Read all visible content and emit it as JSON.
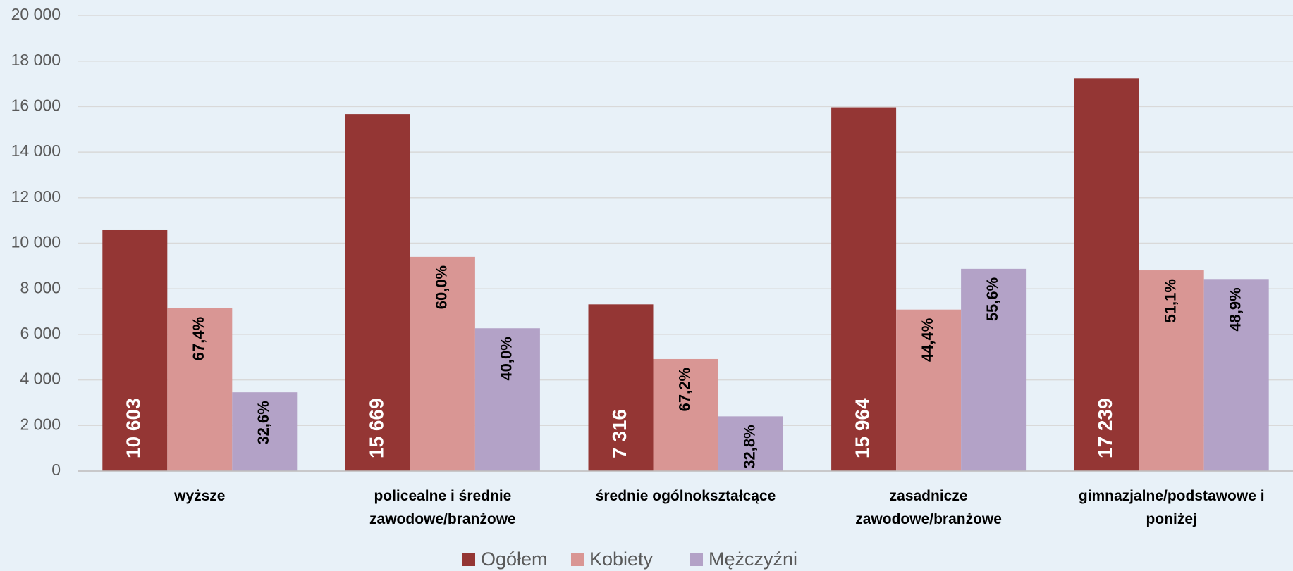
{
  "chart_data": {
    "type": "bar",
    "categories": [
      "wyższe",
      "policealne i średnie zawodowe/branżowe",
      "średnie ogólnokształcące",
      "zasadnicze zawodowe/branżowe",
      "gimnazjalne/podstawowe i poniżej"
    ],
    "series": [
      {
        "name": "Ogółem",
        "color": "#943634",
        "values": [
          10603,
          15669,
          7316,
          15964,
          17239
        ],
        "value_labels": [
          "10 603",
          "15 669",
          "7 316",
          "15 964",
          "17 239"
        ]
      },
      {
        "name": "Kobiety",
        "color": "#d99694",
        "values": [
          7146,
          9401,
          4916,
          7088,
          8809
        ],
        "percent_labels": [
          "67,4%",
          "60,0%",
          "67,2%",
          "44,4%",
          "51,1%"
        ]
      },
      {
        "name": "Mężczyźni",
        "color": "#b3a2c7",
        "values": [
          3457,
          6268,
          2400,
          8876,
          8430
        ],
        "percent_labels": [
          "32,6%",
          "40,0%",
          "32,8%",
          "55,6%",
          "48,9%"
        ]
      }
    ],
    "ylim": [
      0,
      20000
    ],
    "yticks": [
      0,
      {
        "value": 2000,
        "label": "2 000"
      },
      {
        "value": 4000,
        "label": "4 000"
      },
      {
        "value": 6000,
        "label": "6 000"
      },
      {
        "value": 8000,
        "label": "8 000"
      },
      {
        "value": 10000,
        "label": "10 000"
      },
      {
        "value": 12000,
        "label": "12 000"
      },
      {
        "value": 14000,
        "label": "14 000"
      },
      {
        "value": 16000,
        "label": "16 000"
      },
      {
        "value": 18000,
        "label": "18 000"
      },
      {
        "value": 20000,
        "label": "20 000"
      }
    ],
    "grid": true,
    "legend": "bottom"
  }
}
